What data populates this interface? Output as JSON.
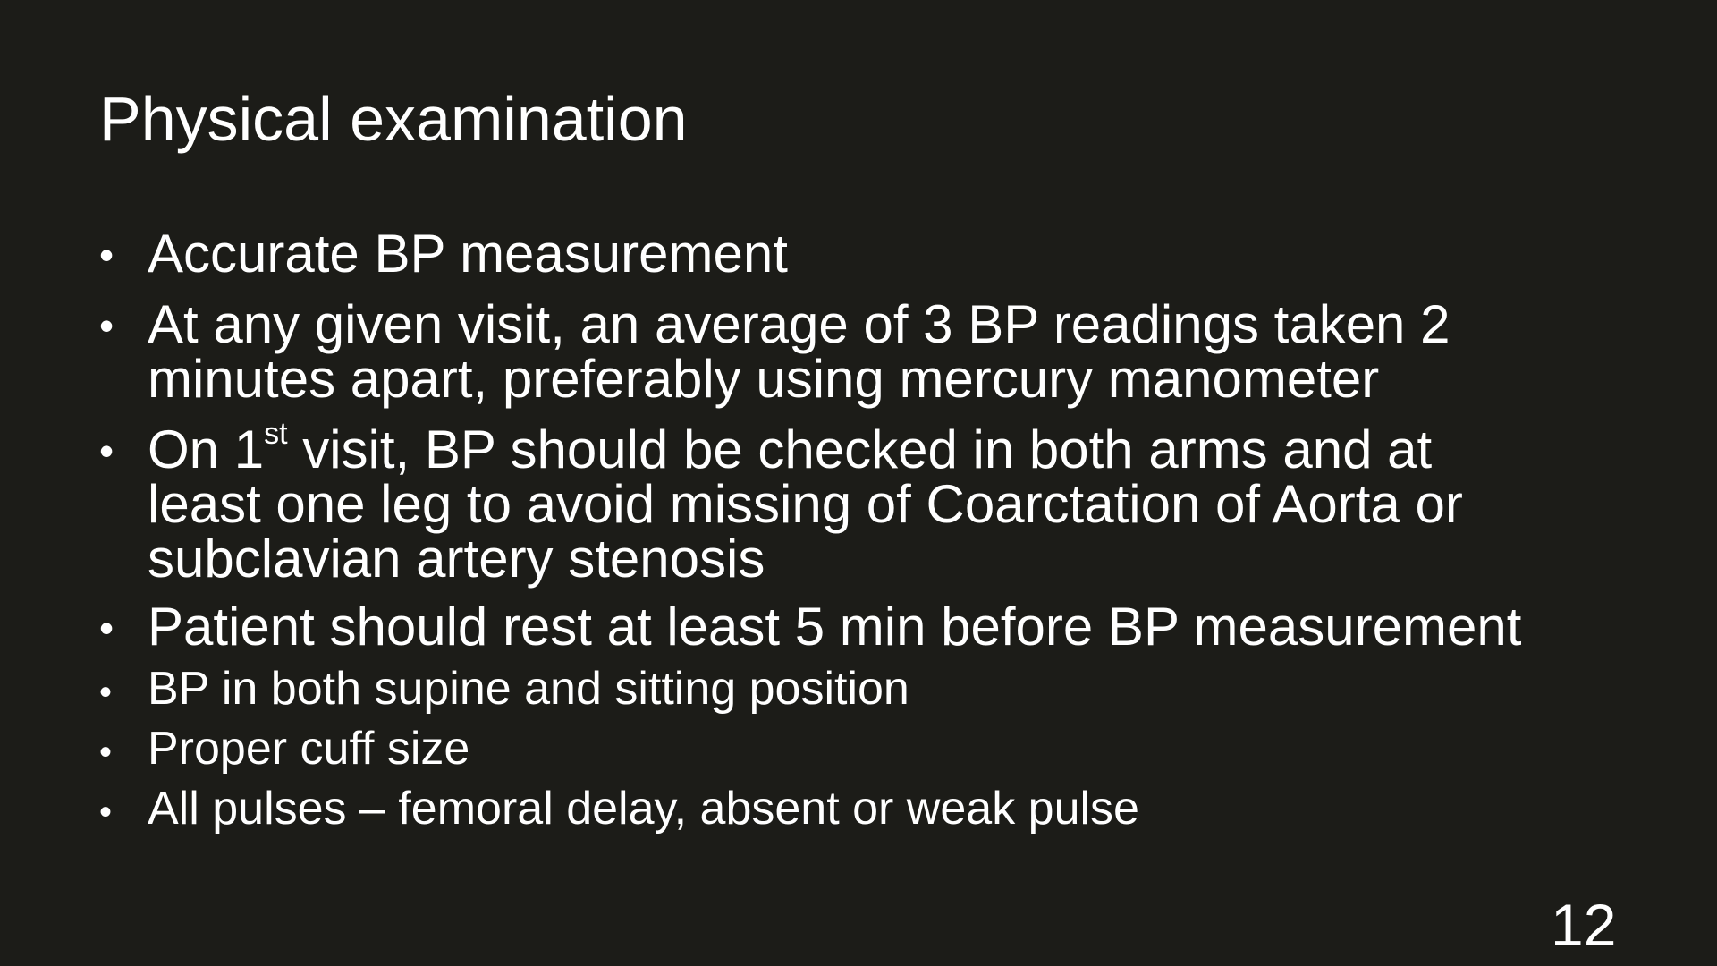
{
  "slide": {
    "title": "Physical examination",
    "bullet_symbol": "•",
    "bullets": [
      {
        "text": "Accurate BP measurement"
      },
      {
        "line1": "At any given visit, an average of 3 BP readings taken 2",
        "line2": "minutes apart, preferably using mercury manometer"
      },
      {
        "pre": "On 1",
        "sup": "st",
        "post": " visit, BP should be checked in both arms and at",
        "line2": "least one leg to avoid missing of Coarctation of Aorta or",
        "line3": "subclavian artery stenosis"
      },
      {
        "text": "Patient should rest at least 5 min before BP measurement"
      },
      {
        "text": "BP in both supine and sitting position"
      },
      {
        "text": "Proper cuff size"
      },
      {
        "text": "All pulses – femoral delay, absent or weak pulse"
      }
    ],
    "page_number": "12"
  }
}
